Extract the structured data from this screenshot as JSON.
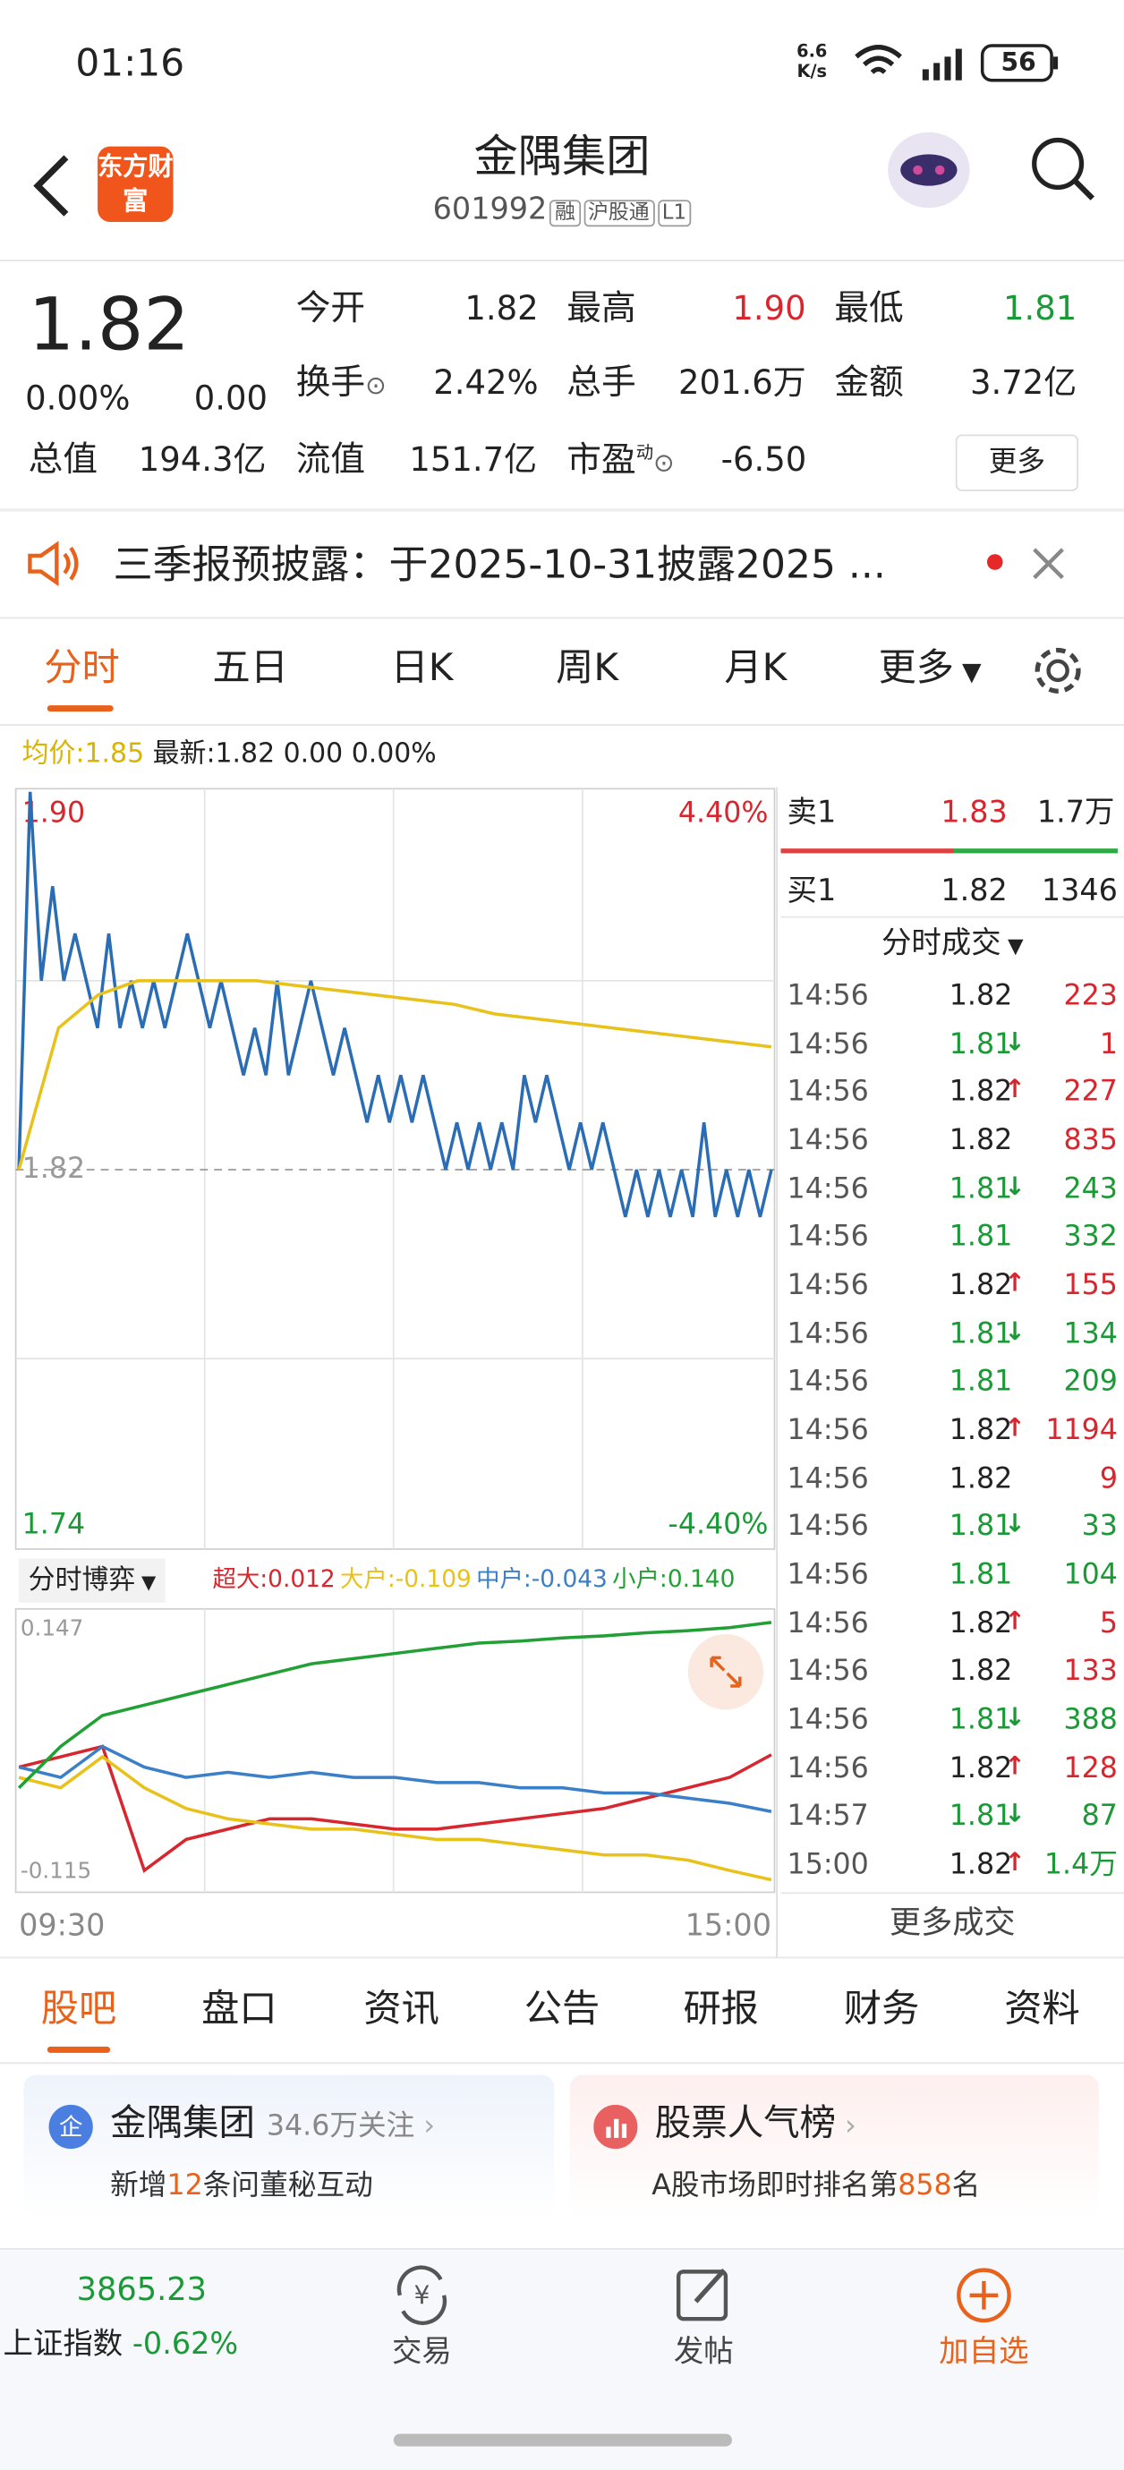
{
  "status": {
    "time": "01:16",
    "speed": "6.6",
    "speed_unit": "K/s",
    "battery": "56"
  },
  "header": {
    "logo": "东方财富",
    "name": "金隅集团",
    "code": "601992",
    "tags": [
      "融",
      "沪股通",
      "L1"
    ]
  },
  "quote": {
    "price": "1.82",
    "change_pct": "0.00%",
    "change": "0.00",
    "fields": [
      {
        "label": "今开",
        "value": "1.82"
      },
      {
        "label": "最高",
        "value": "1.90"
      },
      {
        "label": "最低",
        "value": "1.81"
      },
      {
        "label": "换手",
        "value": "2.42%"
      },
      {
        "label": "总手",
        "value": "201.6万"
      },
      {
        "label": "金额",
        "value": "3.72亿"
      },
      {
        "label": "总值",
        "value": "194.3亿"
      },
      {
        "label": "流值",
        "value": "151.7亿"
      },
      {
        "label": "市盈",
        "value": "-6.50",
        "sup": "动"
      }
    ],
    "more": "更多"
  },
  "notice": {
    "text": "三季报预披露：于2025-10-31披露2025 ..."
  },
  "tabs": [
    "分时",
    "五日",
    "日K",
    "周K",
    "月K",
    "更多"
  ],
  "info": {
    "avg_label": "均价:",
    "avg": "1.85",
    "latest_label": "最新:",
    "latest": "1.82 0.00 0.00%"
  },
  "price_chart": {
    "type": "line",
    "ylim": [
      1.74,
      1.9
    ],
    "yticks": [
      {
        "value": 1.9,
        "label": "1.90"
      },
      1.82,
      {
        "value": 1.74,
        "label": "1.74"
      }
    ],
    "y2lim": [
      -4.4,
      4.4
    ],
    "y2ticks": [
      {
        "value": 4.4,
        "label": "4.40%"
      },
      {
        "value": -4.4,
        "label": "-4.40%"
      }
    ],
    "xlabels": [
      "09:30",
      "15:00"
    ],
    "series": [
      {
        "name": "最新",
        "color": "#2a6db5",
        "values": [
          1.82,
          1.9,
          1.86,
          1.88,
          1.86,
          1.87,
          1.86,
          1.85,
          1.87,
          1.85,
          1.86,
          1.85,
          1.86,
          1.85,
          1.86,
          1.87,
          1.86,
          1.85,
          1.86,
          1.85,
          1.84,
          1.85,
          1.84,
          1.86,
          1.84,
          1.85,
          1.86,
          1.85,
          1.84,
          1.85,
          1.84,
          1.83,
          1.84,
          1.83,
          1.84,
          1.83,
          1.84,
          1.83,
          1.82,
          1.83,
          1.82,
          1.83,
          1.82,
          1.83,
          1.82,
          1.84,
          1.83,
          1.84,
          1.83,
          1.82,
          1.83,
          1.82,
          1.83,
          1.82,
          1.81,
          1.82,
          1.81,
          1.82,
          1.81,
          1.82,
          1.81,
          1.83,
          1.81,
          1.82,
          1.81,
          1.82,
          1.81,
          1.82
        ]
      },
      {
        "name": "均价",
        "color": "#e8c21a",
        "values": [
          1.82,
          1.85,
          1.857,
          1.86,
          1.86,
          1.86,
          1.86,
          1.859,
          1.858,
          1.857,
          1.856,
          1.855,
          1.853,
          1.852,
          1.851,
          1.85,
          1.849,
          1.848,
          1.847,
          1.846
        ]
      }
    ]
  },
  "book": {
    "sell": {
      "label": "卖1",
      "price": "1.83",
      "vol": "1.7万"
    },
    "buy": {
      "label": "买1",
      "price": "1.82",
      "vol": "1346"
    },
    "trades_title": "分时成交",
    "trades": [
      {
        "time": "14:56",
        "price": "1.82",
        "vol": "223",
        "vol_color": "#d8262e"
      },
      {
        "time": "14:56",
        "price": "1.81",
        "arrow": "↓",
        "vol": "1",
        "vol_color": "#d8262e"
      },
      {
        "time": "14:56",
        "price": "1.82",
        "arrow": "↑",
        "vol": "227",
        "vol_color": "#d8262e"
      },
      {
        "time": "14:56",
        "price": "1.82",
        "vol": "835",
        "vol_color": "#d8262e"
      },
      {
        "time": "14:56",
        "price": "1.81",
        "arrow": "↓",
        "vol": "243",
        "vol_color": "#1a9a36"
      },
      {
        "time": "14:56",
        "price": "1.81",
        "vol": "332",
        "vol_color": "#1a9a36"
      },
      {
        "time": "14:56",
        "price": "1.82",
        "arrow": "↑",
        "vol": "155",
        "vol_color": "#d8262e"
      },
      {
        "time": "14:56",
        "price": "1.81",
        "arrow": "↓",
        "vol": "134",
        "vol_color": "#1a9a36"
      },
      {
        "time": "14:56",
        "price": "1.81",
        "vol": "209",
        "vol_color": "#1a9a36"
      },
      {
        "time": "14:56",
        "price": "1.82",
        "arrow": "↑",
        "vol": "1194",
        "vol_color": "#d8262e"
      },
      {
        "time": "14:56",
        "price": "1.82",
        "vol": "9",
        "vol_color": "#d8262e"
      },
      {
        "time": "14:56",
        "price": "1.81",
        "arrow": "↓",
        "vol": "33",
        "vol_color": "#1a9a36"
      },
      {
        "time": "14:56",
        "price": "1.81",
        "vol": "104",
        "vol_color": "#1a9a36"
      },
      {
        "time": "14:56",
        "price": "1.82",
        "arrow": "↑",
        "vol": "5",
        "vol_color": "#d8262e"
      },
      {
        "time": "14:56",
        "price": "1.82",
        "vol": "133",
        "vol_color": "#d8262e"
      },
      {
        "time": "14:56",
        "price": "1.81",
        "arrow": "↓",
        "vol": "388",
        "vol_color": "#1a9a36"
      },
      {
        "time": "14:56",
        "price": "1.82",
        "arrow": "↑",
        "vol": "128",
        "vol_color": "#d8262e"
      },
      {
        "time": "14:57",
        "price": "1.81",
        "arrow": "↓",
        "vol": "87",
        "vol_color": "#1a9a36"
      },
      {
        "time": "15:00",
        "price": "1.82",
        "arrow": "↑",
        "vol": "1.4万",
        "vol_color": "#1a9a36"
      }
    ],
    "more": "更多成交"
  },
  "flow_chart": {
    "type": "line",
    "title": "分时博弈",
    "ylim": [
      -0.115,
      0.147
    ],
    "yticks": [
      0.147,
      -0.115
    ],
    "series": [
      {
        "name": "超大",
        "color": "#d8262e",
        "label": "0.012",
        "values": [
          0,
          0.01,
          0.02,
          -0.1,
          -0.07,
          -0.06,
          -0.05,
          -0.05,
          -0.055,
          -0.06,
          -0.06,
          -0.055,
          -0.05,
          -0.045,
          -0.04,
          -0.03,
          -0.02,
          -0.01,
          0.012
        ]
      },
      {
        "name": "大户",
        "color": "#e8c21a",
        "label": "-0.109",
        "values": [
          -0.01,
          -0.02,
          0.01,
          -0.02,
          -0.04,
          -0.05,
          -0.055,
          -0.06,
          -0.06,
          -0.065,
          -0.07,
          -0.07,
          -0.075,
          -0.08,
          -0.085,
          -0.085,
          -0.09,
          -0.1,
          -0.109
        ]
      },
      {
        "name": "中户",
        "color": "#3a7fc8",
        "label": "-0.043",
        "values": [
          0,
          -0.01,
          0.02,
          0,
          -0.01,
          -0.005,
          -0.01,
          -0.005,
          -0.01,
          -0.01,
          -0.015,
          -0.015,
          -0.02,
          -0.02,
          -0.025,
          -0.025,
          -0.03,
          -0.035,
          -0.043
        ]
      },
      {
        "name": "小户",
        "color": "#22a035",
        "label": "0.140",
        "values": [
          -0.02,
          0.02,
          0.05,
          0.06,
          0.07,
          0.08,
          0.09,
          0.1,
          0.105,
          0.11,
          0.115,
          0.12,
          0.122,
          0.125,
          0.127,
          0.13,
          0.132,
          0.135,
          0.14
        ]
      }
    ]
  },
  "sections": [
    "股吧",
    "盘口",
    "资讯",
    "公告",
    "研报",
    "财务",
    "资料"
  ],
  "cards": [
    {
      "icon": "企",
      "title": "金隅集团",
      "meta": "34.6万关注",
      "pre": "新增",
      "num": "12",
      "post": "条问董秘互动"
    },
    {
      "title": "股票人气榜",
      "pre": "A股市场即时排名第",
      "num": "858",
      "post": "名"
    }
  ],
  "nav": {
    "index_value": "3865.23",
    "index_name": "上证指数",
    "index_change": "-0.62%",
    "items": [
      "交易",
      "发帖",
      "加自选"
    ]
  }
}
